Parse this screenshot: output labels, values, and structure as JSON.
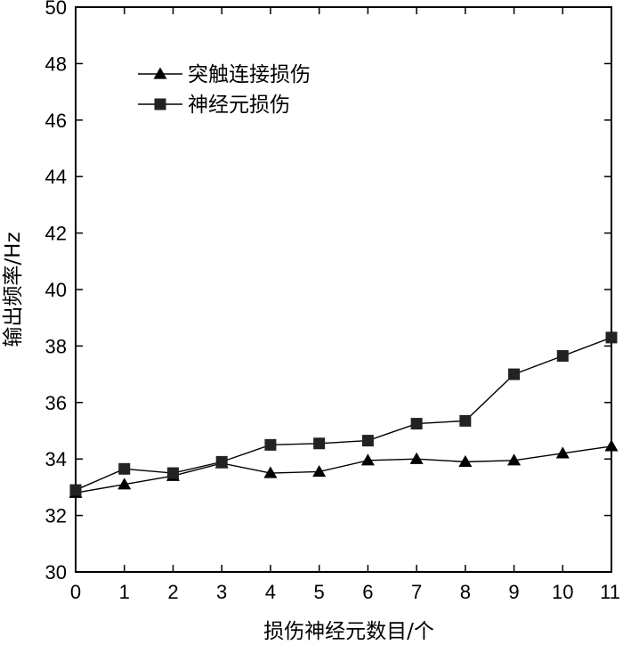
{
  "chart_data": {
    "type": "line",
    "title": "",
    "xlabel": "损伤神经元数目/个",
    "ylabel": "输出频率/Hz",
    "xlim": [
      0,
      11
    ],
    "ylim": [
      30,
      50
    ],
    "xticks": [
      0,
      1,
      2,
      3,
      4,
      5,
      6,
      7,
      8,
      9,
      10,
      11
    ],
    "yticks": [
      30,
      32,
      34,
      36,
      38,
      40,
      42,
      44,
      46,
      48,
      50
    ],
    "grid": false,
    "legend_position": "top-left",
    "x": [
      0,
      1,
      2,
      3,
      4,
      5,
      6,
      7,
      8,
      9,
      10,
      11
    ],
    "series": [
      {
        "name": "突触连接损伤",
        "marker": "triangle",
        "color": "#000000",
        "values": [
          32.8,
          33.1,
          33.4,
          33.85,
          33.5,
          33.55,
          33.95,
          34.0,
          33.9,
          33.95,
          34.2,
          34.45
        ]
      },
      {
        "name": "神经元损伤",
        "marker": "square",
        "color": "#222222",
        "values": [
          32.9,
          33.65,
          33.5,
          33.9,
          34.5,
          34.55,
          34.65,
          35.25,
          35.35,
          37.0,
          37.65,
          38.3
        ]
      }
    ]
  }
}
